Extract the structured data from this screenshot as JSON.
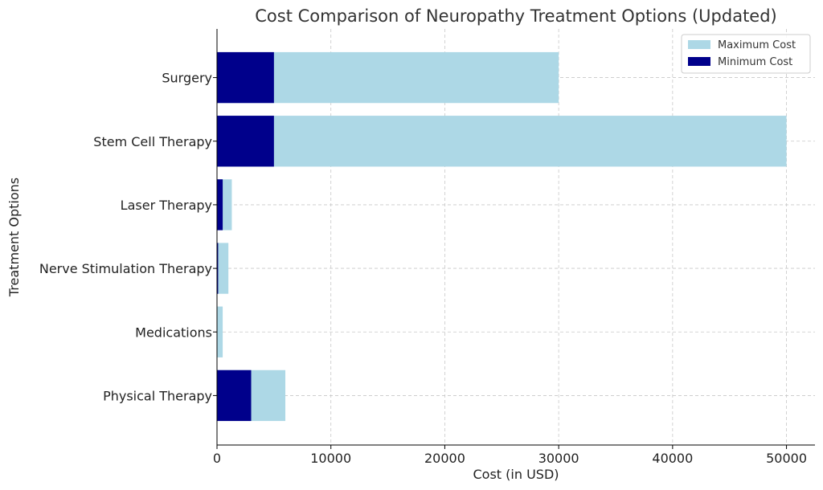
{
  "chart_data": {
    "type": "bar",
    "orientation": "horizontal",
    "stacking": "overlay",
    "title": "Cost Comparison of Neuropathy Treatment Options (Updated)",
    "xlabel": "Cost (in USD)",
    "ylabel": "Treatment Options",
    "categories": [
      "Physical Therapy",
      "Medications",
      "Nerve Stimulation Therapy",
      "Laser Therapy",
      "Stem Cell Therapy",
      "Surgery"
    ],
    "series": [
      {
        "name": "Maximum Cost",
        "color": "#add8e6",
        "values": [
          6000,
          500,
          1000,
          1300,
          50000,
          30000
        ]
      },
      {
        "name": "Minimum Cost",
        "color": "#00008b",
        "values": [
          3000,
          20,
          100,
          500,
          5000,
          5000
        ]
      }
    ],
    "xlim": [
      0,
      52500
    ],
    "xticks": [
      0,
      10000,
      20000,
      30000,
      40000,
      50000
    ],
    "xtick_labels": [
      "0",
      "10000",
      "20000",
      "30000",
      "40000",
      "50000"
    ],
    "grid": true,
    "legend_position": "top-right"
  }
}
